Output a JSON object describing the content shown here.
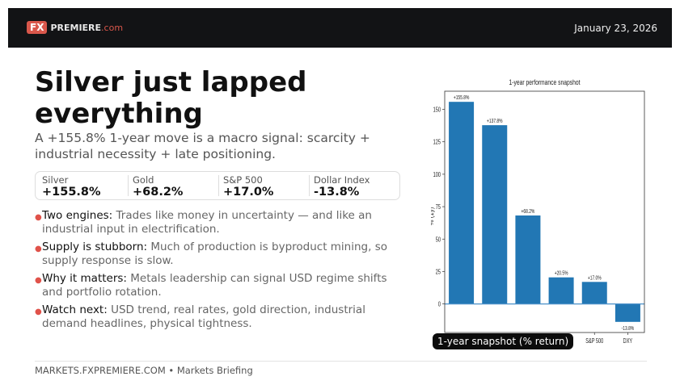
{
  "header": {
    "logo_fx": "FX",
    "logo_name": "PREMIERE",
    "logo_tld": ".com",
    "date": "January 23, 2026"
  },
  "title": "Silver just lapped everything",
  "subtitle": "A +155.8% 1-year move is a macro signal: scarcity + industrial necessity + late positioning.",
  "stats": [
    {
      "label": "Silver",
      "value": "+155.8%"
    },
    {
      "label": "Gold",
      "value": "+68.2%"
    },
    {
      "label": "S&P 500",
      "value": "+17.0%"
    },
    {
      "label": "Dollar Index",
      "value": "-13.8%"
    }
  ],
  "bullets": [
    {
      "key": "Two engines:",
      "text": "Trades like money in uncertainty — and like an industrial input in electrification."
    },
    {
      "key": "Supply is stubborn:",
      "text": "Much of production is byproduct mining, so supply response is slow."
    },
    {
      "key": "Why it matters:",
      "text": "Metals leadership can signal USD regime shifts and portfolio rotation."
    },
    {
      "key": "Watch next:",
      "text": "USD trend, real rates, gold direction, industrial demand headlines, physical tightness."
    }
  ],
  "footer": "MARKETS.FXPREMIERE.COM • Markets Briefing",
  "caption": "1-year snapshot (% return)",
  "colors": {
    "bar": "#2277b4",
    "accent": "#d9574b",
    "header_bg": "#121315"
  },
  "chart_data": {
    "type": "bar",
    "title": "1-year performance snapshot",
    "ylabel": "% (1y)",
    "categories": [
      "",
      "",
      "",
      "",
      "S&P 500",
      "DXY"
    ],
    "values": [
      155.8,
      137.8,
      68.2,
      20.5,
      17.0,
      -13.8
    ],
    "data_labels": [
      "+155.8%",
      "+137.8%",
      "+68.2%",
      "+20.5%",
      "+17.0%",
      "-13.8%"
    ],
    "yticks": [
      0,
      25,
      50,
      75,
      100,
      125,
      150
    ],
    "ylim": [
      -22,
      164
    ],
    "grid": false
  }
}
